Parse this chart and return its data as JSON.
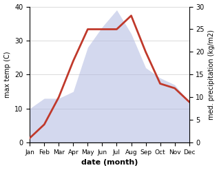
{
  "months": [
    "Jan",
    "Feb",
    "Mar",
    "Apr",
    "May",
    "Jun",
    "Jul",
    "Aug",
    "Sep",
    "Oct",
    "Nov",
    "Dec"
  ],
  "temp": [
    10,
    13,
    13,
    15,
    28,
    34,
    39,
    32,
    22,
    19,
    17,
    12
  ],
  "precip": [
    1,
    4,
    10,
    18,
    25,
    25,
    25,
    28,
    20,
    13,
    12,
    9
  ],
  "temp_color": "#b0b8e0",
  "temp_alpha": 0.55,
  "precip_color": "#c0392b",
  "xlabel": "date (month)",
  "ylabel_left": "max temp (C)",
  "ylabel_right": "med. precipitation (kg/m2)",
  "ylim_left": [
    0,
    40
  ],
  "ylim_right": [
    0,
    30
  ],
  "yticks_left": [
    0,
    10,
    20,
    30,
    40
  ],
  "yticks_right": [
    0,
    5,
    10,
    15,
    20,
    25,
    30
  ],
  "grid_color": "#cccccc",
  "precip_linewidth": 2.0
}
